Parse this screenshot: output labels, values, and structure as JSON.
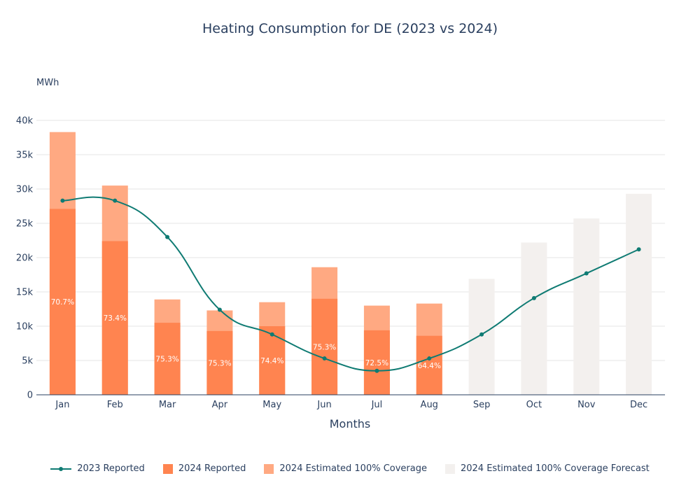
{
  "chart_data": {
    "type": "bar",
    "title": "Heating Consumption for DE (2023 vs 2024)",
    "ylabel": "MWh",
    "xlabel": "Months",
    "ylim": [
      0,
      40000
    ],
    "yticks": [
      0,
      5000,
      10000,
      15000,
      20000,
      25000,
      30000,
      35000,
      40000
    ],
    "ytick_labels": [
      "0",
      "5k",
      "10k",
      "15k",
      "20k",
      "25k",
      "30k",
      "35k",
      "40k"
    ],
    "grid": true,
    "legend_position": "bottom",
    "categories": [
      "Jan",
      "Feb",
      "Mar",
      "Apr",
      "May",
      "Jun",
      "Jul",
      "Aug",
      "Sep",
      "Oct",
      "Nov",
      "Dec"
    ],
    "series": [
      {
        "name": "2023 Reported",
        "kind": "line",
        "color": "#0f7b73",
        "values": [
          28300,
          28300,
          23000,
          12400,
          8800,
          5300,
          3500,
          5300,
          8800,
          14100,
          17700,
          21200
        ]
      },
      {
        "name": "2024 Reported",
        "kind": "bar",
        "color": "#ff8450",
        "values": [
          27100,
          22400,
          10500,
          9300,
          10000,
          14000,
          9400,
          8600,
          null,
          null,
          null,
          null
        ]
      },
      {
        "name": "2024 Estimated 100% Coverage",
        "kind": "bar",
        "color": "#ffa982",
        "values": [
          38300,
          30500,
          13900,
          12300,
          13500,
          18600,
          13000,
          13300,
          null,
          null,
          null,
          null
        ]
      },
      {
        "name": "2024 Estimated 100% Coverage Forecast",
        "kind": "bar",
        "color": "#f3f0ee",
        "values": [
          null,
          null,
          null,
          null,
          null,
          null,
          null,
          null,
          16900,
          22200,
          25700,
          29300
        ]
      }
    ],
    "coverage_labels": [
      "70.7%",
      "73.4%",
      "75.3%",
      "75.3%",
      "74.4%",
      "75.3%",
      "72.5%",
      "64.4%"
    ]
  }
}
